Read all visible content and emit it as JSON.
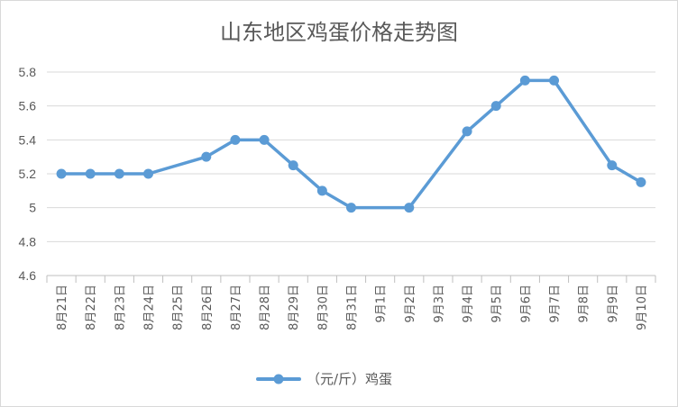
{
  "chart_data": {
    "type": "line",
    "title": "山东地区鸡蛋价格走势图",
    "xlabel": "",
    "ylabel": "",
    "ylim": [
      4.6,
      5.8
    ],
    "yticks": [
      "4.6",
      "4.8",
      "5",
      "5.2",
      "5.4",
      "5.6",
      "5.8"
    ],
    "categories": [
      "8月21日",
      "8月22日",
      "8月23日",
      "8月24日",
      "8月25日",
      "8月26日",
      "8月27日",
      "8月28日",
      "8月29日",
      "8月30日",
      "8月31日",
      "9月1日",
      "9月2日",
      "9月3日",
      "9月4日",
      "9月5日",
      "9月6日",
      "9月7日",
      "9月8日",
      "9月9日",
      "9月10日"
    ],
    "series": [
      {
        "name": "（元/斤）鸡蛋",
        "color": "#5b9bd5",
        "points": [
          [
            "8月21日",
            5.2
          ],
          [
            "8月22日",
            5.2
          ],
          [
            "8月23日",
            5.2
          ],
          [
            "8月24日",
            5.2
          ],
          [
            "8月26日",
            5.3
          ],
          [
            "8月27日",
            5.4
          ],
          [
            "8月28日",
            5.4
          ],
          [
            "8月29日",
            5.25
          ],
          [
            "8月30日",
            5.1
          ],
          [
            "8月31日",
            5.0
          ],
          [
            "9月2日",
            5.0
          ],
          [
            "9月4日",
            5.45
          ],
          [
            "9月5日",
            5.6
          ],
          [
            "9月6日",
            5.75
          ],
          [
            "9月7日",
            5.75
          ],
          [
            "9月9日",
            5.25
          ],
          [
            "9月10日",
            5.15
          ]
        ]
      }
    ],
    "grid": true,
    "legend_position": "bottom"
  }
}
